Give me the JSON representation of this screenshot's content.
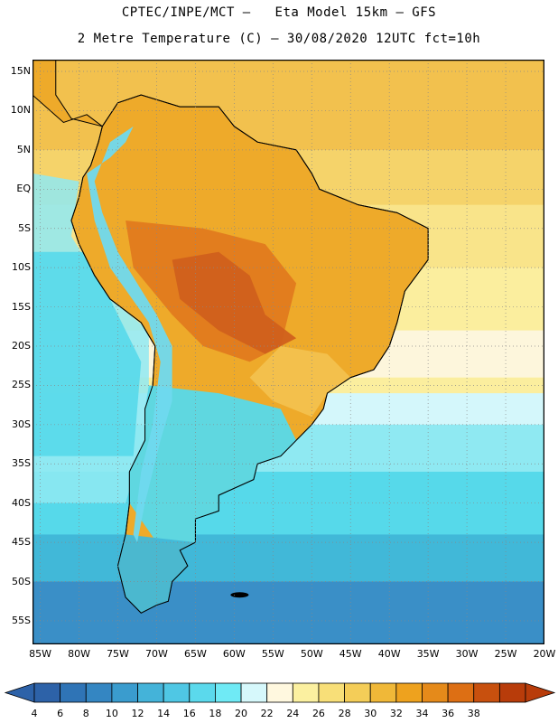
{
  "header": {
    "line1": "CPTEC/INPE/MCT –   Eta Model 15km – GFS",
    "line2": "2 Metre Temperature (C) – 30/08/2020 12UTC fct=10h"
  },
  "map": {
    "variable": "2 Metre Temperature",
    "unit": "C",
    "lat_labels": [
      "15N",
      "10N",
      "5N",
      "EQ",
      "5S",
      "10S",
      "15S",
      "20S",
      "25S",
      "30S",
      "35S",
      "40S",
      "45S",
      "50S",
      "55S"
    ],
    "lon_labels": [
      "85W",
      "80W",
      "75W",
      "70W",
      "65W",
      "60W",
      "55W",
      "50W",
      "45W",
      "40W",
      "35W",
      "30W",
      "25W",
      "20W"
    ],
    "lon_range": [
      -86,
      -20
    ],
    "lat_range": [
      16.5,
      -58
    ],
    "ocean_bands": [
      {
        "lat": 16.5,
        "color": "#f2c14e"
      },
      {
        "lat": 5,
        "color": "#f5d36a"
      },
      {
        "lat": -2,
        "color": "#f9e48a"
      },
      {
        "lat": -10,
        "color": "#fbee9e"
      },
      {
        "lat": -18,
        "color": "#fdf6dc"
      },
      {
        "lat": -24,
        "color": "#fbee9e"
      },
      {
        "lat": -26,
        "color": "#d4f7fb"
      },
      {
        "lat": -30,
        "color": "#8fe9f2"
      },
      {
        "lat": -36,
        "color": "#56d9ea"
      },
      {
        "lat": -44,
        "color": "#41b8d8"
      },
      {
        "lat": -50,
        "color": "#3a8fc7"
      },
      {
        "lat": -58,
        "color": "#2e6db0"
      }
    ],
    "pacific_color_north": "#8fe9f2",
    "land_colors": {
      "north": "#eeaa2a",
      "hot": "#e07a1e",
      "hotter": "#d0601c",
      "andes": "#6fd9ee",
      "south_cool": "#56d9ea",
      "patagonia": "#41b8d8",
      "southern": "#3a8fc7"
    }
  },
  "colorbar": {
    "labels": [
      "4",
      "6",
      "8",
      "10",
      "12",
      "14",
      "16",
      "18",
      "20",
      "22",
      "24",
      "26",
      "28",
      "30",
      "32",
      "34",
      "36",
      "38"
    ],
    "colors": [
      "#2d62a8",
      "#2f74b6",
      "#3486c2",
      "#3a9cce",
      "#44b3d9",
      "#4fc7e4",
      "#5bd9ec",
      "#6feaf5",
      "#d6f8fb",
      "#fff8df",
      "#fbf0a0",
      "#f8df78",
      "#f4cd58",
      "#f0b838",
      "#eea21e",
      "#e58a1a",
      "#dd6f14",
      "#c8500e",
      "#b83c0a"
    ],
    "min": 4,
    "max": 38
  }
}
